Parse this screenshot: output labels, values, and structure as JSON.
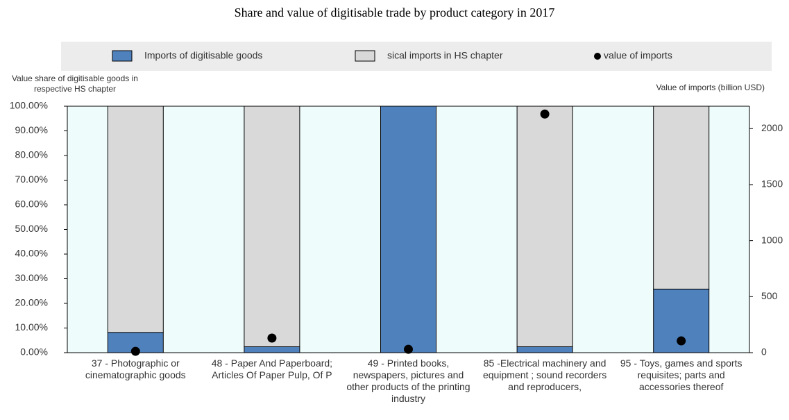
{
  "chart_data": {
    "type": "bar",
    "title": "Share and value of digitisable trade by product category in 2017",
    "categories": [
      "37 - Photographic or cinematographic goods",
      "48 - Paper And Paperboard; Articles Of Paper Pulp, Of P",
      "49 - Printed books, newspapers, pictures and other products of the printing industry",
      "85 -Electrical machinery and equipment ; sound recorders and reproducers,",
      "95 - Toys, games and sports requisites; parts and accessories thereof"
    ],
    "series": [
      {
        "name": "Imports of digitisable goods",
        "color": "#4f81bd",
        "values": [
          8.2,
          2.4,
          100,
          2.4,
          25.8
        ]
      },
      {
        "name": "sical imports in HS chapter",
        "color": "#d9d9d9",
        "values": [
          91.8,
          97.6,
          0,
          97.6,
          74.2
        ]
      },
      {
        "name": "value of imports",
        "color": "#000000",
        "type": "scatter",
        "axis": "y2",
        "values": [
          12,
          130,
          30,
          2130,
          105
        ]
      }
    ],
    "ylabel": "Value share of digitisable goods in respective HS chapter",
    "y2label": "Value of imports (billion USD)",
    "ylim": [
      0,
      100
    ],
    "yticks": [
      {
        "value": 0,
        "label": "0.00%"
      },
      {
        "value": 10,
        "label": "10.00%"
      },
      {
        "value": 20,
        "label": "20.00%"
      },
      {
        "value": 30,
        "label": "30.00%"
      },
      {
        "value": 40,
        "label": "40.00%"
      },
      {
        "value": 50,
        "label": "50.00%"
      },
      {
        "value": 60,
        "label": "60.00%"
      },
      {
        "value": 70,
        "label": "70.00%"
      },
      {
        "value": 80,
        "label": "80.00%"
      },
      {
        "value": 90,
        "label": "90.00%"
      },
      {
        "value": 100,
        "label": "100.00%"
      }
    ],
    "y2lim": [
      0,
      2200
    ],
    "y2ticks": [
      0,
      500,
      1000,
      1500,
      2000
    ],
    "stacked": true,
    "legend": "top"
  }
}
